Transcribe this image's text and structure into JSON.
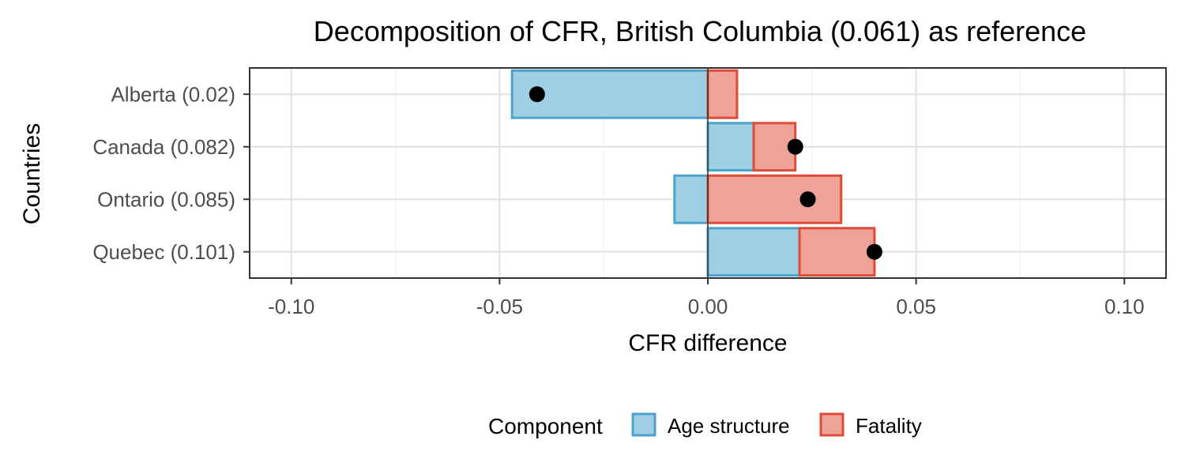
{
  "chart_data": {
    "type": "bar",
    "orientation": "horizontal",
    "stacking": "diverging",
    "title": "Decomposition of CFR, British Columbia (0.061) as reference",
    "xlabel": "CFR difference",
    "ylabel": "Countries",
    "xlim": [
      -0.11,
      0.11
    ],
    "x_ticks": [
      -0.1,
      -0.05,
      0.0,
      0.05,
      0.1
    ],
    "x_tick_labels": [
      "-0.10",
      "-0.05",
      "0.00",
      "0.05",
      "0.10"
    ],
    "grid": true,
    "categories": [
      "Alberta (0.02)",
      "Canada (0.082)",
      "Ontario (0.085)",
      "Quebec (0.101)"
    ],
    "series": [
      {
        "name": "Age structure",
        "color": "#4BA3CB",
        "fill": "#9FCFE4",
        "values": [
          -0.047,
          0.011,
          -0.008,
          0.022
        ]
      },
      {
        "name": "Fatality",
        "color": "#DE4B37",
        "fill": "#EFA298",
        "values": [
          0.007,
          0.01,
          0.032,
          0.018
        ]
      }
    ],
    "totals": [
      -0.041,
      0.021,
      0.024,
      0.04
    ],
    "total_marker_color": "#000000",
    "legend": {
      "title": "Component",
      "position": "bottom"
    }
  }
}
